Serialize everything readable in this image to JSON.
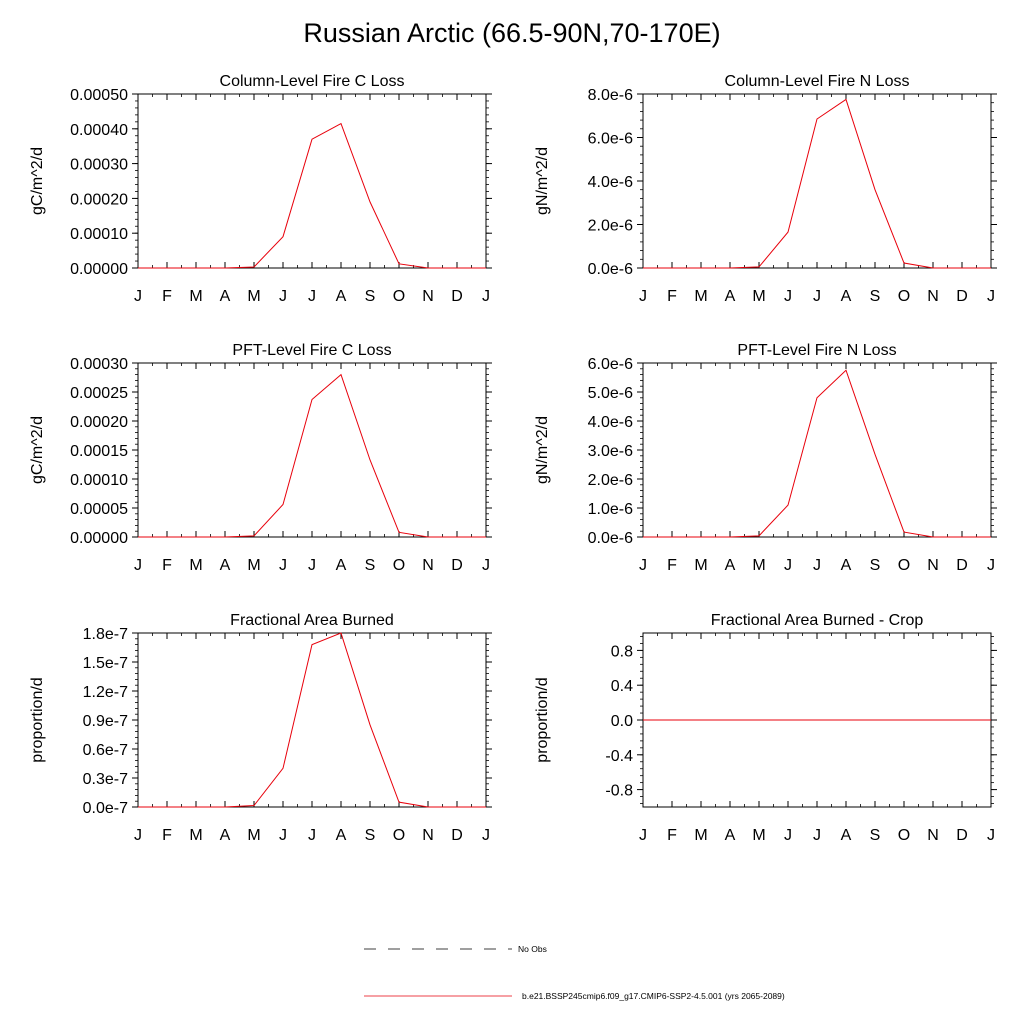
{
  "title": "Russian Arctic (66.5-90N,70-170E)",
  "colors": {
    "model_line": "#e8000b",
    "obs_line": "#000000",
    "axis": "#000000"
  },
  "months": [
    "J",
    "F",
    "M",
    "A",
    "M",
    "J",
    "J",
    "A",
    "S",
    "O",
    "N",
    "D",
    "J"
  ],
  "chart_data": [
    {
      "type": "line",
      "title": "Column-Level Fire C Loss",
      "ylabel": "gC/m^2/d",
      "ylim": [
        0,
        0.0005
      ],
      "yticks": [
        0,
        0.0001,
        0.0002,
        0.0003,
        0.0004,
        0.0005
      ],
      "yticklabels": [
        "0.00000",
        "0.00010",
        "0.00020",
        "0.00030",
        "0.00040",
        "0.00050"
      ],
      "series": [
        {
          "values": [
            0,
            0,
            0,
            0,
            3e-06,
            9e-05,
            0.00037,
            0.000415,
            0.00019,
            1.2e-05,
            0,
            0,
            0
          ]
        }
      ]
    },
    {
      "type": "line",
      "title": "Column-Level Fire N Loss",
      "ylabel": "gN/m^2/d",
      "ylim": [
        0,
        8e-06
      ],
      "yticks": [
        0,
        2e-06,
        4e-06,
        6e-06,
        8e-06
      ],
      "yticklabels": [
        "0.0e-6",
        "2.0e-6",
        "4.0e-6",
        "6.0e-6",
        "8.0e-6"
      ],
      "series": [
        {
          "values": [
            0,
            0,
            0,
            0,
            5e-08,
            1.65e-06,
            6.85e-06,
            7.75e-06,
            3.6e-06,
            2.3e-07,
            0,
            0,
            0
          ]
        }
      ]
    },
    {
      "type": "line",
      "title": "PFT-Level Fire C Loss",
      "ylabel": "gC/m^2/d",
      "ylim": [
        0,
        0.0003
      ],
      "yticks": [
        0,
        5e-05,
        0.0001,
        0.00015,
        0.0002,
        0.00025,
        0.0003
      ],
      "yticklabels": [
        "0.00000",
        "0.00005",
        "0.00010",
        "0.00015",
        "0.00020",
        "0.00025",
        "0.00030"
      ],
      "series": [
        {
          "values": [
            0,
            0,
            0,
            0,
            2e-06,
            5.6e-05,
            0.000237,
            0.00028,
            0.000133,
            8e-06,
            0,
            0,
            0
          ]
        }
      ]
    },
    {
      "type": "line",
      "title": "PFT-Level Fire N Loss",
      "ylabel": "gN/m^2/d",
      "ylim": [
        0,
        6e-06
      ],
      "yticks": [
        0,
        1e-06,
        2e-06,
        3e-06,
        4e-06,
        5e-06,
        6e-06
      ],
      "yticklabels": [
        "0.0e-6",
        "1.0e-6",
        "2.0e-6",
        "3.0e-6",
        "4.0e-6",
        "5.0e-6",
        "6.0e-6"
      ],
      "series": [
        {
          "values": [
            0,
            0,
            0,
            0,
            4e-08,
            1.1e-06,
            4.8e-06,
            5.75e-06,
            2.85e-06,
            1.7e-07,
            0,
            0,
            0
          ]
        }
      ]
    },
    {
      "type": "line",
      "title": "Fractional Area Burned",
      "ylabel": "proportion/d",
      "ylim": [
        0,
        1.8e-07
      ],
      "yticks": [
        0,
        3e-08,
        6e-08,
        9e-08,
        1.2e-07,
        1.5e-07,
        1.8e-07
      ],
      "yticklabels": [
        "0.0e-7",
        "0.3e-7",
        "0.6e-7",
        "0.9e-7",
        "1.2e-7",
        "1.5e-7",
        "1.8e-7"
      ],
      "series": [
        {
          "values": [
            0,
            0,
            0,
            0,
            1.5e-09,
            4e-08,
            1.68e-07,
            1.8e-07,
            8.5e-08,
            5e-09,
            0,
            0,
            0
          ]
        }
      ]
    },
    {
      "type": "line",
      "title": "Fractional Area Burned - Crop",
      "ylabel": "proportion/d",
      "ylim": [
        -1,
        1
      ],
      "yticks": [
        -0.8,
        -0.4,
        0,
        0.4,
        0.8
      ],
      "yticklabels": [
        "-0.8",
        "-0.4",
        "0.0",
        "0.4",
        "0.8"
      ],
      "series": [
        {
          "values": [
            0,
            0,
            0,
            0,
            0,
            0,
            0,
            0,
            0,
            0,
            0,
            0,
            0
          ]
        }
      ]
    }
  ],
  "legend": [
    {
      "label": "No Obs",
      "style": "dashed"
    },
    {
      "label": "b.e21.BSSP245cmip6.f09_g17.CMIP6-SSP2-4.5.001 (yrs 2065-2089)",
      "style": "solid"
    }
  ]
}
